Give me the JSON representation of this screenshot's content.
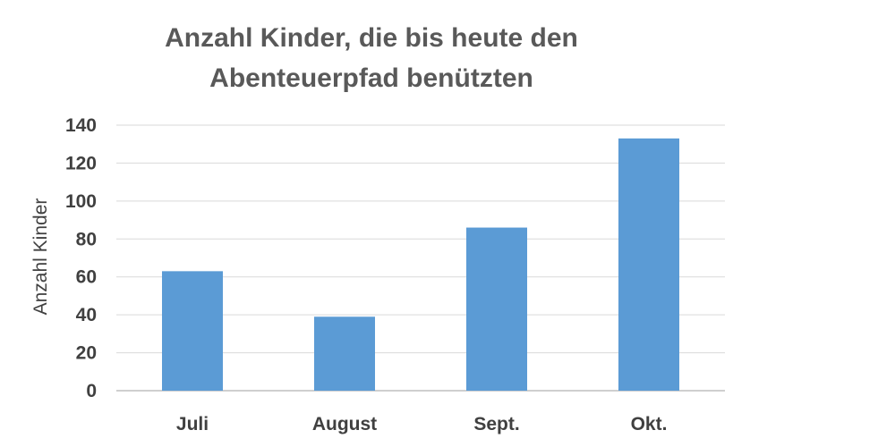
{
  "chart_data": {
    "type": "bar",
    "title": "Anzahl Kinder, die bis heute den Abenteuerpfad benützten",
    "title_lines": [
      "Anzahl Kinder, die bis heute den",
      "Abenteuerpfad benützten"
    ],
    "categories": [
      "Juli",
      "August",
      "Sept.",
      "Okt."
    ],
    "values": [
      63,
      39,
      86,
      133
    ],
    "xlabel": "",
    "ylabel": "Anzahl Kinder",
    "ylim": [
      0,
      140
    ],
    "yticks": [
      0,
      20,
      40,
      60,
      80,
      100,
      120,
      140
    ],
    "grid": true,
    "legend": "none",
    "colors": {
      "bar": "#5B9BD5",
      "grid": "#D9D9D9",
      "axis": "#BFBFBF",
      "title": "#595959",
      "text": "#404040"
    }
  }
}
